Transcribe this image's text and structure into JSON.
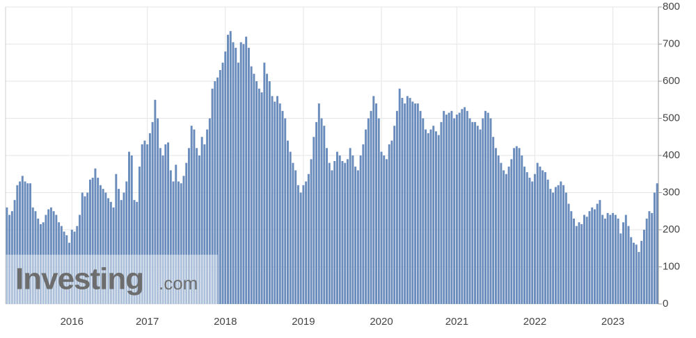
{
  "chart_data": {
    "type": "bar",
    "watermark": {
      "brand": "Investing",
      "suffix": ".com"
    },
    "color": "#6a8cbc",
    "ylim": [
      0,
      800
    ],
    "yticks": [
      0,
      100,
      200,
      300,
      400,
      500,
      600,
      700,
      800
    ],
    "grid": true,
    "y_axis_side": "right",
    "categories": [
      null,
      null,
      null,
      null,
      null,
      null,
      null,
      null,
      null,
      null,
      null,
      null,
      null,
      null,
      null,
      null,
      null,
      null,
      null,
      null,
      null,
      null,
      null,
      null,
      null,
      "2016",
      null,
      null,
      null,
      null,
      null,
      null,
      null,
      null,
      null,
      null,
      null,
      null,
      null,
      null,
      null,
      null,
      null,
      null,
      null,
      null,
      null,
      null,
      null,
      null,
      null,
      null,
      null,
      null,
      "2017",
      null,
      null,
      null,
      null,
      null,
      null,
      null,
      null,
      null,
      null,
      null,
      null,
      null,
      null,
      null,
      null,
      null,
      null,
      null,
      null,
      null,
      null,
      null,
      null,
      null,
      null,
      null,
      null,
      null,
      "2018",
      null,
      null,
      null,
      null,
      null,
      null,
      null,
      null,
      null,
      null,
      null,
      null,
      null,
      null,
      null,
      null,
      null,
      null,
      null,
      null,
      null,
      null,
      null,
      null,
      null,
      null,
      null,
      null,
      null,
      "2019",
      null,
      null,
      null,
      null,
      null,
      null,
      null,
      null,
      null,
      null,
      null,
      null,
      null,
      null,
      null,
      null,
      null,
      null,
      null,
      null,
      null,
      null,
      null,
      null,
      null,
      null,
      null,
      null,
      null,
      "2020",
      null,
      null,
      null,
      null,
      null,
      null,
      null,
      null,
      null,
      null,
      null,
      null,
      null,
      null,
      null,
      null,
      null,
      null,
      null,
      null,
      null,
      null,
      null,
      null,
      null,
      null,
      null,
      null,
      "2021",
      null,
      null,
      null,
      null,
      null,
      null,
      null,
      null,
      null,
      null,
      null,
      null,
      null,
      null,
      null,
      null,
      null,
      null,
      null,
      null,
      null,
      null,
      null,
      null,
      null,
      null,
      null,
      null,
      null,
      "2022",
      null,
      null,
      null,
      null,
      null,
      null,
      null,
      null,
      null,
      null,
      null,
      null,
      null,
      null,
      null,
      null,
      null,
      null,
      null,
      null,
      null,
      null,
      null,
      null,
      null,
      null,
      null,
      null,
      null,
      "2023",
      null,
      null,
      null,
      null,
      null,
      null,
      null,
      null,
      null,
      null,
      null,
      null,
      null,
      null,
      null,
      null,
      null
    ],
    "values": [
      260,
      240,
      250,
      280,
      320,
      330,
      345,
      330,
      325,
      325,
      260,
      250,
      230,
      215,
      220,
      240,
      255,
      260,
      250,
      240,
      220,
      210,
      195,
      185,
      165,
      200,
      195,
      210,
      240,
      300,
      290,
      300,
      335,
      340,
      365,
      340,
      320,
      310,
      300,
      285,
      275,
      260,
      350,
      310,
      280,
      300,
      330,
      410,
      400,
      280,
      275,
      370,
      430,
      440,
      430,
      460,
      490,
      550,
      500,
      420,
      400,
      430,
      435,
      360,
      330,
      375,
      330,
      325,
      345,
      380,
      420,
      480,
      470,
      420,
      400,
      450,
      430,
      470,
      500,
      580,
      600,
      610,
      630,
      650,
      680,
      725,
      735,
      705,
      690,
      650,
      705,
      700,
      720,
      690,
      640,
      620,
      600,
      580,
      570,
      650,
      620,
      600,
      560,
      545,
      560,
      540,
      520,
      500,
      440,
      410,
      380,
      360,
      320,
      300,
      320,
      330,
      350,
      390,
      450,
      490,
      540,
      500,
      480,
      420,
      380,
      360,
      385,
      410,
      400,
      385,
      380,
      390,
      420,
      400,
      370,
      360,
      400,
      430,
      470,
      500,
      520,
      560,
      540,
      500,
      410,
      400,
      390,
      430,
      440,
      480,
      520,
      580,
      555,
      540,
      560,
      555,
      545,
      540,
      540,
      520,
      500,
      470,
      460,
      470,
      480,
      465,
      455,
      490,
      520,
      510,
      515,
      520,
      500,
      510,
      515,
      525,
      530,
      520,
      500,
      490,
      490,
      480,
      470,
      500,
      520,
      515,
      500,
      450,
      420,
      400,
      380,
      360,
      350,
      370,
      390,
      420,
      425,
      420,
      400,
      370,
      355,
      340,
      330,
      350,
      380,
      370,
      360,
      355,
      335,
      310,
      300,
      315,
      320,
      330,
      320,
      300,
      270,
      250,
      230,
      210,
      220,
      215,
      240,
      235,
      250,
      260,
      255,
      270,
      280,
      240,
      230,
      245,
      240,
      245,
      240,
      230,
      190,
      220,
      240,
      210,
      180,
      165,
      160,
      140,
      170,
      200,
      230,
      250,
      245,
      300,
      325
    ]
  }
}
